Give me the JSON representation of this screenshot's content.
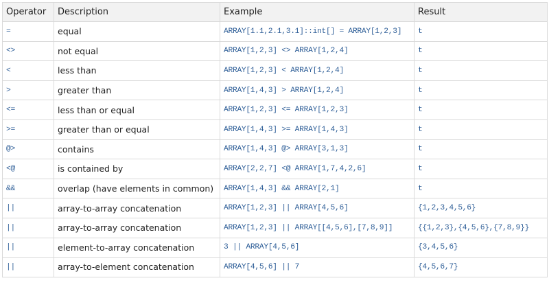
{
  "table": {
    "columns": [
      "Operator",
      "Description",
      "Example",
      "Result"
    ],
    "rows": [
      [
        "=",
        "equal",
        "ARRAY[1.1,2.1,3.1]::int[] = ARRAY[1,2,3]",
        "t"
      ],
      [
        "<>",
        "not equal",
        "ARRAY[1,2,3] <> ARRAY[1,2,4]",
        "t"
      ],
      [
        "<",
        "less than",
        "ARRAY[1,2,3] < ARRAY[1,2,4]",
        "t"
      ],
      [
        ">",
        "greater than",
        "ARRAY[1,4,3] > ARRAY[1,2,4]",
        "t"
      ],
      [
        "<=",
        "less than or equal",
        "ARRAY[1,2,3] <= ARRAY[1,2,3]",
        "t"
      ],
      [
        ">=",
        "greater than or equal",
        "ARRAY[1,4,3] >= ARRAY[1,4,3]",
        "t"
      ],
      [
        "@>",
        "contains",
        "ARRAY[1,4,3] @> ARRAY[3,1,3]",
        "t"
      ],
      [
        "<@",
        "is contained by",
        "ARRAY[2,2,7] <@ ARRAY[1,7,4,2,6]",
        "t"
      ],
      [
        "&&",
        "overlap (have elements in common)",
        "ARRAY[1,4,3] && ARRAY[2,1]",
        "t"
      ],
      [
        "||",
        "array-to-array concatenation",
        "ARRAY[1,2,3] || ARRAY[4,5,6]",
        "{1,2,3,4,5,6}"
      ],
      [
        "||",
        "array-to-array concatenation",
        "ARRAY[1,2,3] || ARRAY[[4,5,6],[7,8,9]]",
        "{{1,2,3},{4,5,6},{7,8,9}}"
      ],
      [
        "||",
        "element-to-array concatenation",
        "3 || ARRAY[4,5,6]",
        "{3,4,5,6}"
      ],
      [
        "||",
        "array-to-element concatenation",
        "ARRAY[4,5,6] || 7",
        "{4,5,6,7}"
      ]
    ]
  }
}
